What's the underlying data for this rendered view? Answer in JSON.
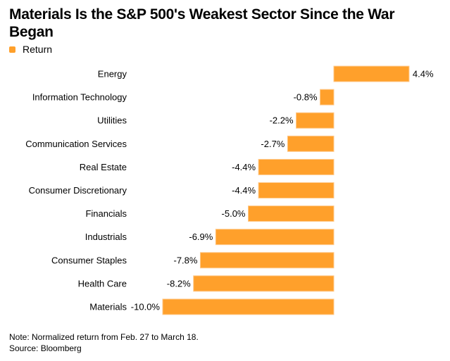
{
  "colors": {
    "bar": "#FFA02B",
    "bar_edge": "#FFC98A",
    "text": "#000000"
  },
  "chart_data": {
    "type": "bar",
    "orientation": "horizontal",
    "title": "Materials Is the S&P 500's Weakest Sector Since the War Began",
    "legend": {
      "placement": "top-left",
      "entries": [
        "Return"
      ]
    },
    "categories": [
      "Energy",
      "Information Technology",
      "Utilities",
      "Communication Services",
      "Real Estate",
      "Consumer Discretionary",
      "Financials",
      "Industrials",
      "Consumer Staples",
      "Health Care",
      "Materials"
    ],
    "series": [
      {
        "name": "Return",
        "values": [
          4.4,
          -0.8,
          -2.2,
          -2.7,
          -4.4,
          -4.4,
          -5.0,
          -6.9,
          -7.8,
          -8.2,
          -10.0
        ]
      }
    ],
    "data_labels": [
      "4.4%",
      "-0.8%",
      "-2.2%",
      "-2.7%",
      "-4.4%",
      "-4.4%",
      "-5.0%",
      "-6.9%",
      "-7.8%",
      "-8.2%",
      "-10.0%"
    ],
    "unit": "%",
    "grid": false
  },
  "notes": {
    "note": "Note: Normalized return from Feb. 27 to March 18.",
    "source": "Source: Bloomberg"
  }
}
